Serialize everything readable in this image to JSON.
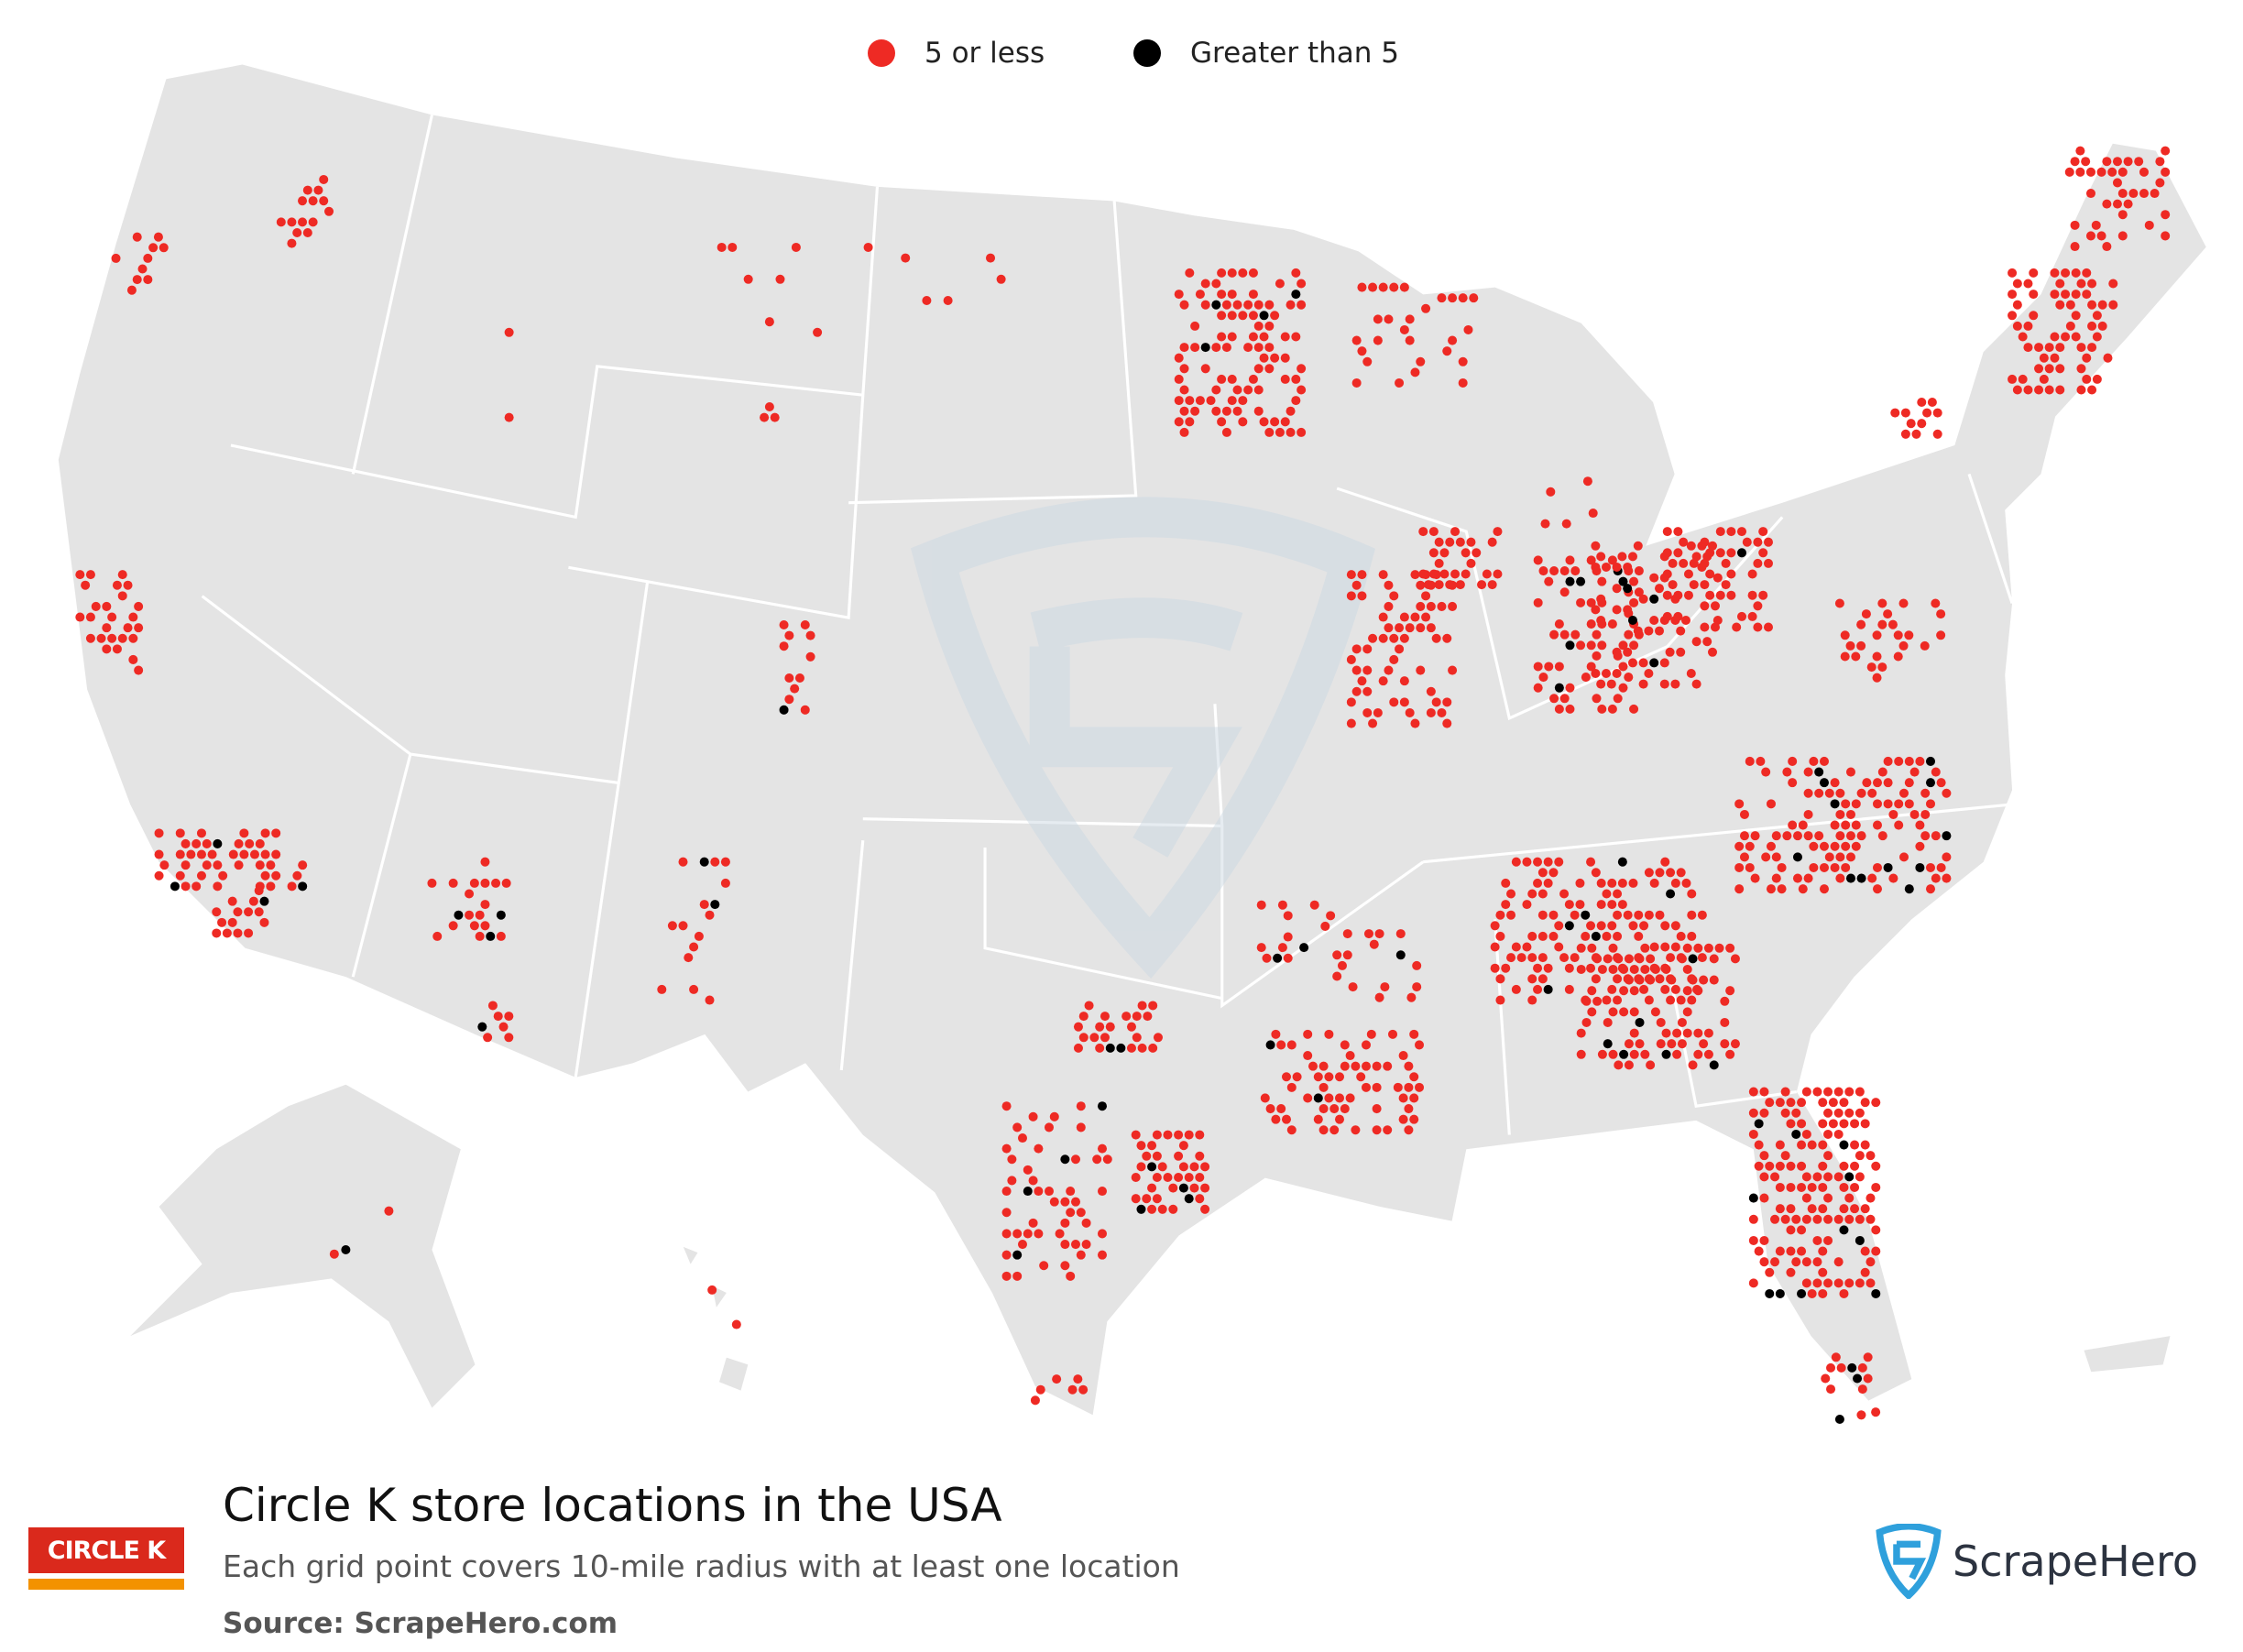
{
  "legend": [
    {
      "label": "5 or less",
      "color": "#ee2a24"
    },
    {
      "label": "Greater than 5",
      "color": "#000000"
    }
  ],
  "title": "Circle K store locations in the USA",
  "subtitle": "Each grid point covers 10-mile radius with at least one location",
  "source": "Source: ScrapeHero.com",
  "brand_logo": "CIRCLE K",
  "publisher_logo": "ScrapeHero",
  "colors": {
    "land": "#e4e4e4",
    "border": "#ffffff",
    "watermark": "#c9d7e2"
  }
}
